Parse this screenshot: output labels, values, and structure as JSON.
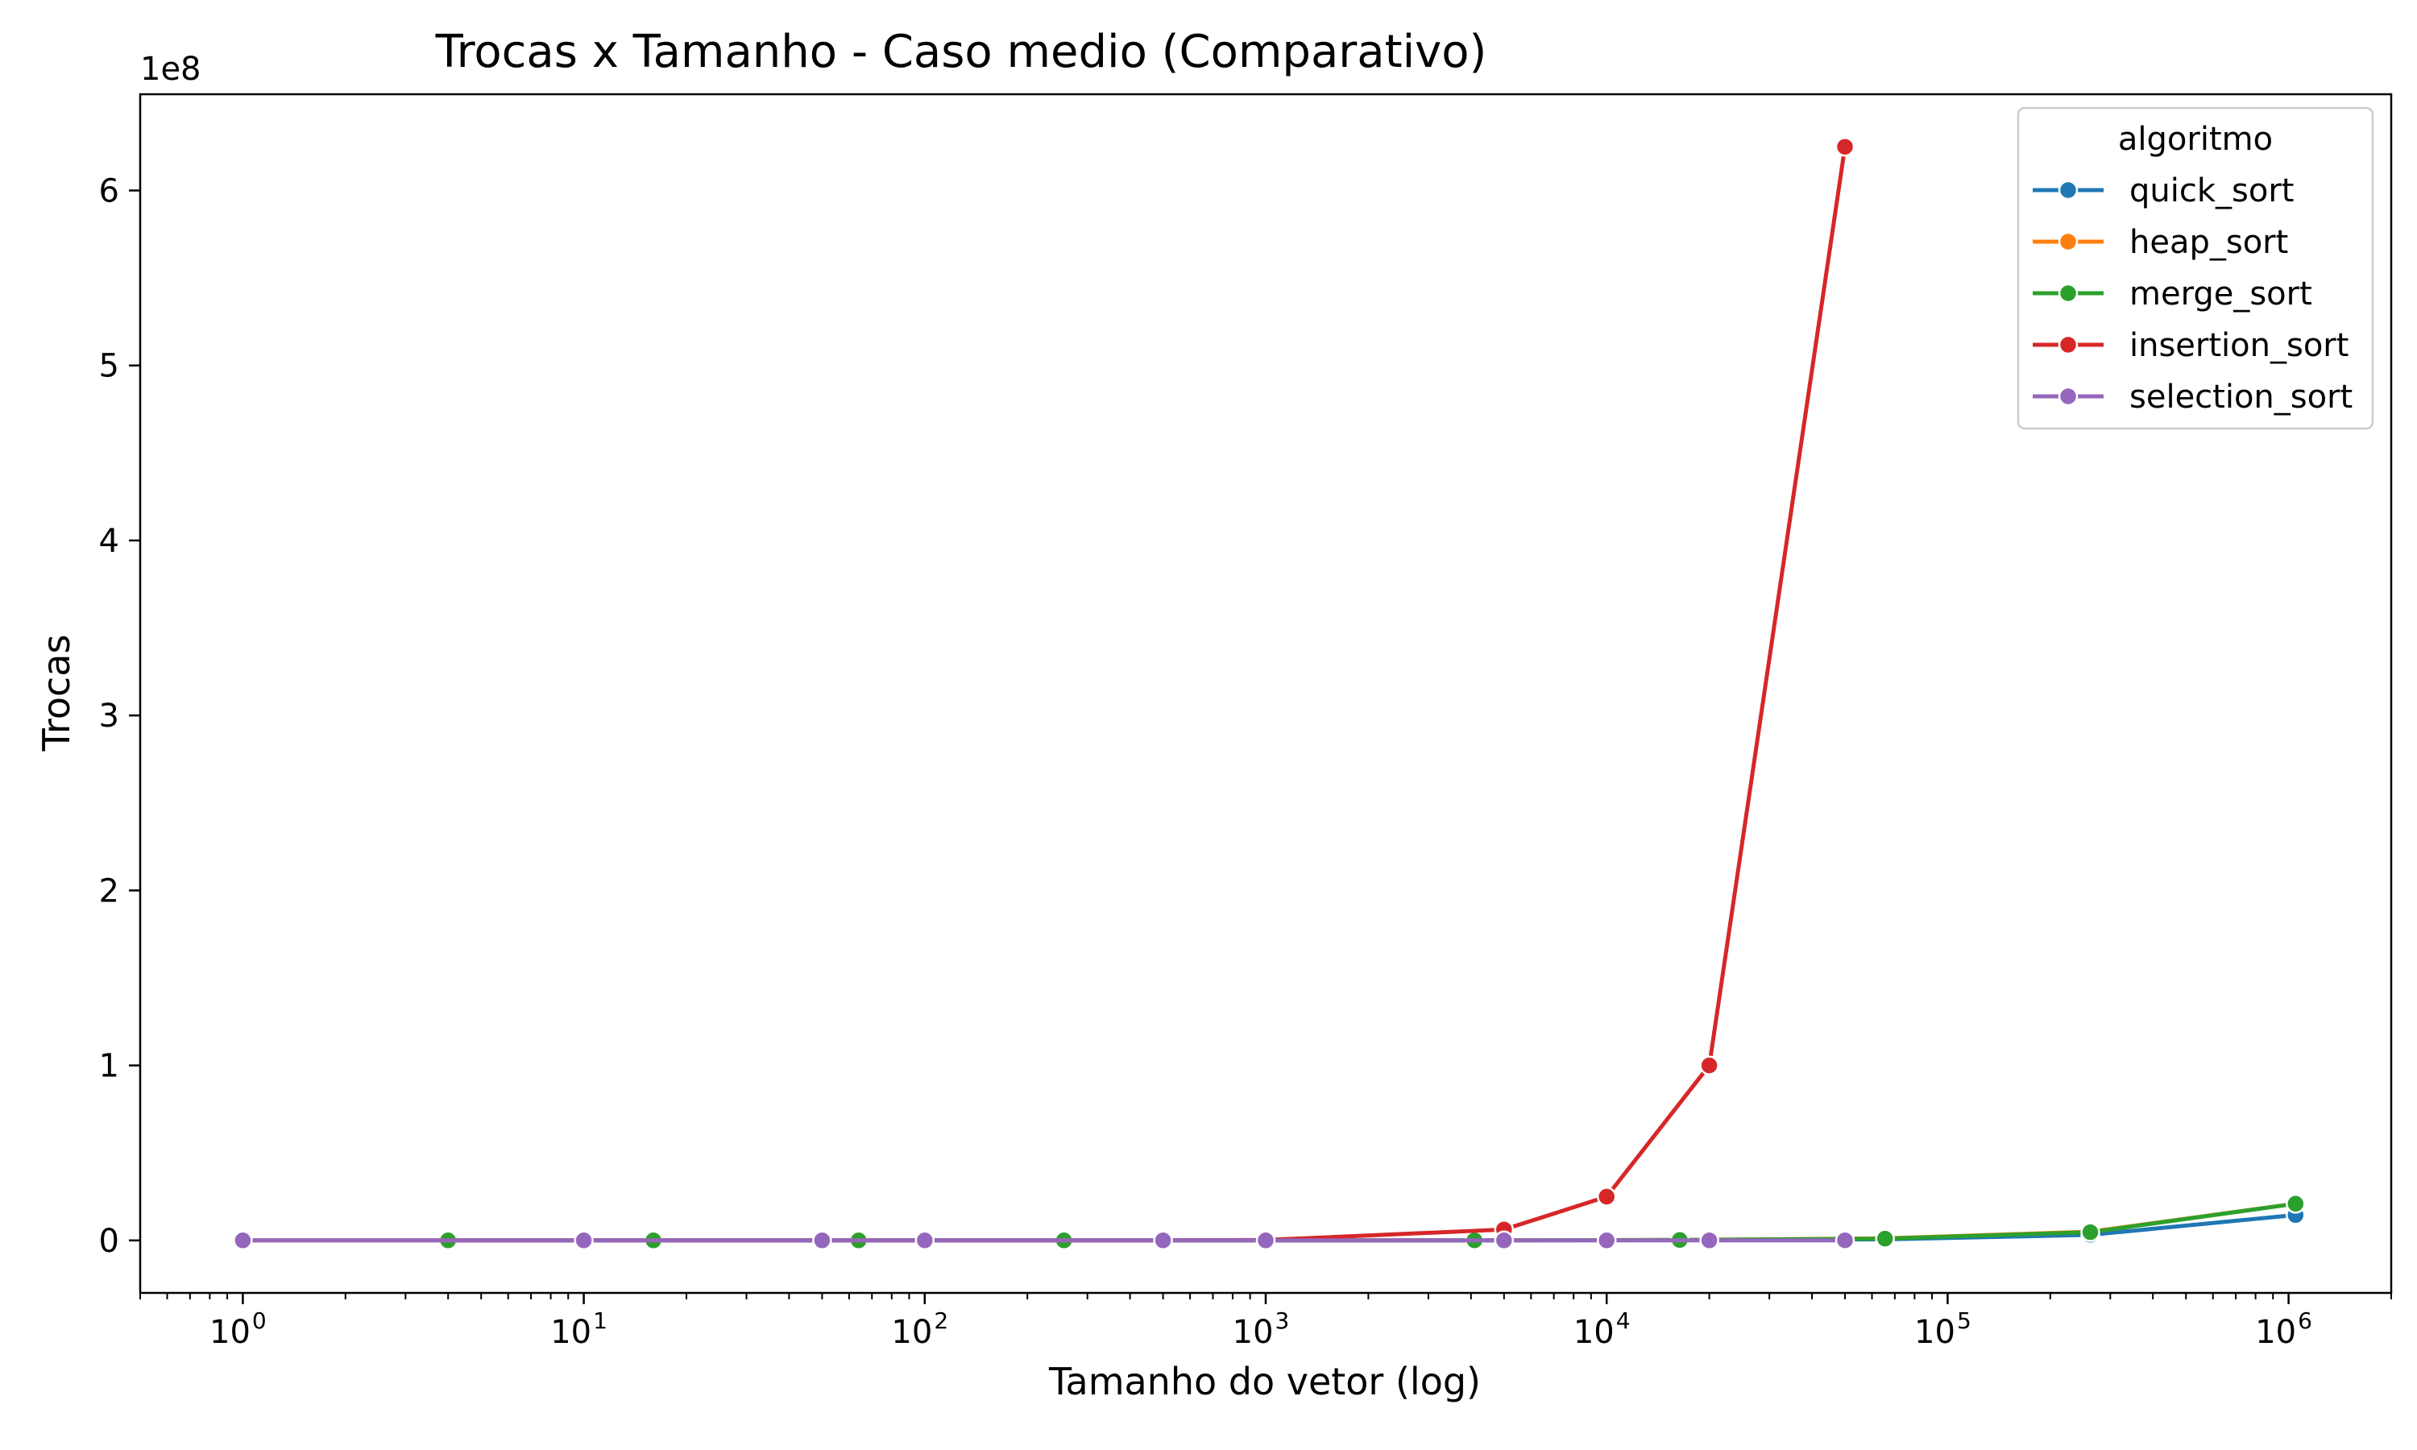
{
  "chart_data": {
    "type": "line",
    "title": "Trocas x Tamanho - Caso medio (Comparativo)",
    "xlabel": "Tamanho do vetor (log)",
    "ylabel": "Trocas",
    "y_offset_label": "1e8",
    "x_scale": "log",
    "xlim": [
      0.5,
      2000000
    ],
    "ylim": [
      -30000000,
      655000000
    ],
    "y_ticks": [
      0,
      100000000,
      200000000,
      300000000,
      400000000,
      500000000,
      600000000
    ],
    "y_tick_labels": [
      "0",
      "1",
      "2",
      "3",
      "4",
      "5",
      "6"
    ],
    "x_ticks": [
      1,
      10,
      100,
      1000,
      10000,
      100000,
      1000000
    ],
    "x_tick_labels": [
      {
        "base": "10",
        "exp": "0"
      },
      {
        "base": "10",
        "exp": "1"
      },
      {
        "base": "10",
        "exp": "2"
      },
      {
        "base": "10",
        "exp": "3"
      },
      {
        "base": "10",
        "exp": "4"
      },
      {
        "base": "10",
        "exp": "5"
      },
      {
        "base": "10",
        "exp": "6"
      }
    ],
    "grid": false,
    "legend": {
      "title": "algoritmo",
      "position": "top-right"
    },
    "series": [
      {
        "name": "quick_sort",
        "color": "#1f77b4",
        "x": [
          4,
          16,
          64,
          256,
          4096,
          16384,
          65536,
          262144,
          1048576
        ],
        "y": [
          4,
          30,
          200,
          1100,
          28000,
          130000,
          600000,
          3200000,
          14500000
        ]
      },
      {
        "name": "heap_sort",
        "color": "#ff7f0e",
        "x": [
          4,
          16,
          64,
          256,
          4096,
          16384,
          65536,
          262144,
          1048576
        ],
        "y": [
          8,
          70,
          420,
          2300,
          56000,
          260000,
          1150000,
          5000000,
          21000000
        ]
      },
      {
        "name": "merge_sort",
        "color": "#2ca02c",
        "x": [
          4,
          16,
          64,
          256,
          4096,
          16384,
          65536,
          262144,
          1048576
        ],
        "y": [
          8,
          64,
          384,
          2048,
          49152,
          229376,
          1048576,
          4718592,
          20971520
        ]
      },
      {
        "name": "insertion_sort",
        "color": "#d62728",
        "x": [
          1,
          10,
          50,
          100,
          500,
          1000,
          5000,
          10000,
          20000,
          50000
        ],
        "y": [
          0,
          22,
          620,
          2500,
          62000,
          250000,
          6250000,
          25000000,
          100000000,
          625000000
        ]
      },
      {
        "name": "selection_sort",
        "color": "#9467bd",
        "x": [
          1,
          10,
          50,
          100,
          500,
          1000,
          5000,
          10000,
          20000,
          50000
        ],
        "y": [
          0,
          9,
          49,
          99,
          499,
          999,
          4999,
          9999,
          19999,
          49999
        ]
      }
    ]
  }
}
